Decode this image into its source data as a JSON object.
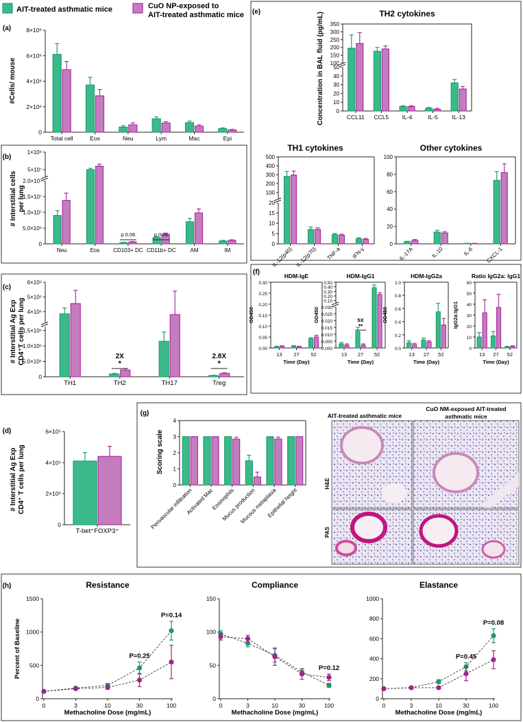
{
  "colors": {
    "green": "#3cb98a",
    "pink": "#c47cbf",
    "green_dark": "#1f9e6c",
    "pink_dark": "#a8319f",
    "resp_green": "#1a9a6a",
    "resp_pink": "#a0238f"
  },
  "legend": {
    "green_label": "AIT-treated asthmatic mice",
    "pink_label_line1": "CuO NP-exposed to",
    "pink_label_line2": "AIT-treated asthmatic mice"
  },
  "chart_data": [
    {
      "id": "a",
      "type": "bar",
      "panel_label": "(a)",
      "ylabel": "#Cells/ mouse",
      "yticks": [
        "0",
        "2×10⁶",
        "4×10⁶",
        "6×10⁶",
        "8×10⁶"
      ],
      "ylim": [
        0,
        8000000
      ],
      "categories": [
        "Total cell",
        "Eos",
        "Neu",
        "Lym",
        "Mac",
        "Epi"
      ],
      "series": [
        {
          "name": "AIT-treated asthmatic mice",
          "values": [
            6100000,
            3700000,
            400000,
            1050000,
            750000,
            280000
          ],
          "errors": [
            850000,
            600000,
            100000,
            150000,
            120000,
            60000
          ]
        },
        {
          "name": "CuO NP-exposed to AIT-treated asthmatic mice",
          "values": [
            4900000,
            2850000,
            580000,
            720000,
            480000,
            170000
          ],
          "errors": [
            650000,
            500000,
            150000,
            110000,
            100000,
            50000
          ]
        }
      ]
    },
    {
      "id": "b",
      "type": "bar",
      "panel_label": "(b)",
      "ylabel_line1": "# Interstitial cells",
      "ylabel_line2": "per lung",
      "yticks_lower": [
        "0",
        "5.0×10⁶",
        "1.0×10⁷",
        "1.5×10⁷",
        "2.0×10⁷"
      ],
      "yticks_upper": [
        "5×10⁷",
        "1×10⁸"
      ],
      "categories": [
        "Neu",
        "Eos",
        "CD103+ DC",
        "CD11b+ DC",
        "AM",
        "IM"
      ],
      "series": [
        {
          "name": "AIT-treated asthmatic mice",
          "values": [
            9000000,
            50000000,
            400000,
            2000000,
            7000000,
            900000
          ],
          "errors": [
            1500000,
            4000000,
            100000,
            300000,
            1100000,
            200000
          ]
        },
        {
          "name": "CuO NP-exposed to AIT-treated asthmatic mice",
          "values": [
            13800000,
            60000000,
            600000,
            3000000,
            9800000,
            1100000
          ],
          "errors": [
            2300000,
            6000000,
            150000,
            400000,
            1300000,
            200000
          ]
        }
      ],
      "annotations": [
        {
          "category": "CD103+ DC",
          "text": "p 0.06"
        },
        {
          "category": "CD11b+ DC",
          "text": "p 0.06"
        }
      ]
    },
    {
      "id": "c",
      "type": "bar",
      "panel_label": "(c)",
      "ylabel_line1": "# Interstitial  Ag Exp",
      "ylabel_line2": "CD4⁺T cells per lung",
      "yticks_lower": [
        "0",
        "5.0×10⁵",
        "1.0×10⁶",
        "1.5×10⁶"
      ],
      "yticks_upper": [
        "4×10⁶",
        "5×10⁶",
        "6×10⁶"
      ],
      "categories": [
        "TH1",
        "TH2",
        "TH17",
        "Treg"
      ],
      "series": [
        {
          "name": "AIT-treated asthmatic mice",
          "values": [
            3850000,
            90000,
            1150000,
            40000
          ],
          "errors": [
            400000,
            20000,
            300000,
            10000
          ]
        },
        {
          "name": "CuO NP-exposed to AIT-treated asthmatic mice",
          "values": [
            4550000,
            220000,
            3800000,
            110000
          ],
          "errors": [
            900000,
            50000,
            1600000,
            20000
          ]
        }
      ],
      "annotations": [
        {
          "category": "TH2",
          "fold": "2X",
          "star": "*"
        },
        {
          "category": "Treg",
          "fold": "2.8X",
          "star": "*"
        }
      ]
    },
    {
      "id": "d",
      "type": "bar",
      "panel_label": "(d)",
      "ylabel_line1": "# Interstitial Ag Exp",
      "ylabel_line2": "CD4⁺ T cells per lung",
      "yticks": [
        "0",
        "2×10⁵",
        "4×10⁵",
        "6×10⁵"
      ],
      "ylim": [
        0,
        600000
      ],
      "categories": [
        "T-bet⁺FOXP3⁺"
      ],
      "series": [
        {
          "name": "AIT-treated asthmatic mice",
          "values": [
            410000
          ],
          "errors": [
            55000
          ]
        },
        {
          "name": "CuO NP-exposed to AIT-treated asthmatic mice",
          "values": [
            440000
          ],
          "errors": [
            65000
          ]
        }
      ]
    },
    {
      "id": "e1",
      "type": "bar",
      "panel_label": "(e)",
      "title": "TH2 cytokines",
      "ylabel": "Concentration in BAL fluid (pg/mL)",
      "yticks_lower": [
        "0",
        "10",
        "20",
        "30",
        "40",
        "50"
      ],
      "yticks_upper": [
        "100",
        "150",
        "200",
        "250",
        "300",
        "350"
      ],
      "categories": [
        "CCL11",
        "CCL5",
        "IL-4",
        "IL-5",
        "IL-13"
      ],
      "series": [
        {
          "name": "AIT-treated asthmatic mice",
          "values": [
            195,
            175,
            5,
            3,
            32
          ],
          "errors": [
            85,
            25,
            1,
            1,
            4
          ]
        },
        {
          "name": "CuO NP-exposed to AIT-treated asthmatic mice",
          "values": [
            225,
            190,
            5,
            2,
            25
          ],
          "errors": [
            70,
            20,
            1,
            1,
            3
          ]
        }
      ]
    },
    {
      "id": "e2",
      "type": "bar",
      "title": "TH1 cytokines",
      "yticks_lower": [
        "0",
        "5",
        "10",
        "15",
        "20"
      ],
      "yticks_upper": [
        "100",
        "200",
        "300",
        "400",
        "500"
      ],
      "categories": [
        "IL-12(p40)",
        "IL-12(p70)",
        "TNF-a",
        "IFN-γ"
      ],
      "series": [
        {
          "name": "AIT-treated asthmatic mice",
          "values": [
            280,
            7,
            4.5,
            2.5
          ],
          "errors": [
            55,
            1.2,
            0.6,
            0.5
          ]
        },
        {
          "name": "CuO NP-exposed to AIT-treated asthmatic mice",
          "values": [
            295,
            7,
            4.2,
            2.2
          ],
          "errors": [
            45,
            0.8,
            0.5,
            0.4
          ]
        }
      ]
    },
    {
      "id": "e3",
      "type": "bar",
      "title": "Other cytokines",
      "yticks": [
        "0",
        "20",
        "40",
        "60",
        "80",
        "100"
      ],
      "ylim": [
        0,
        100
      ],
      "categories": [
        "IL-17A",
        "IL-10",
        "IL-6",
        "CXCL-1"
      ],
      "series": [
        {
          "name": "AIT-treated asthmatic mice",
          "values": [
            2.5,
            13.5,
            0.5,
            73
          ],
          "errors": [
            0.5,
            2,
            0.2,
            10
          ]
        },
        {
          "name": "CuO NP-exposed to AIT-treated asthmatic mice",
          "values": [
            4,
            12.5,
            0.4,
            82
          ],
          "errors": [
            1,
            1.5,
            0.2,
            10
          ]
        }
      ]
    },
    {
      "id": "f1",
      "type": "bar",
      "panel_label": "(f)",
      "title": "HDM-IgE",
      "ylabel": "OD450",
      "xlabel": "Time (Day)",
      "yticks": [
        "0.00",
        "0.05",
        "0.10",
        "0.15",
        "0.20",
        "0.25",
        "0.30"
      ],
      "ylim": [
        0,
        0.3
      ],
      "categories": [
        "13",
        "27",
        "52"
      ],
      "series": [
        {
          "name": "AIT-treated asthmatic mice",
          "values": [
            0.006,
            0.008,
            0.042
          ],
          "errors": [
            0.002,
            0.003,
            0.005
          ]
        },
        {
          "name": "CuO NP-exposed to AIT-treated asthmatic mice",
          "values": [
            0.008,
            0.006,
            0.05
          ],
          "errors": [
            0.002,
            0.002,
            0.008
          ]
        }
      ]
    },
    {
      "id": "f2",
      "type": "bar",
      "title": "HDM-IgG1",
      "ylabel": "OD450",
      "xlabel": "Time (Day)",
      "yticks_lower": [
        "0.000",
        "0.005",
        "0.010",
        "0.015",
        "0.020",
        "0.025",
        "0.030"
      ],
      "yticks_upper": [
        "0.10",
        "0.20",
        "0.30",
        "0.40",
        "0.50"
      ],
      "categories": [
        "13",
        "27",
        "52"
      ],
      "series": [
        {
          "name": "AIT-treated asthmatic mice",
          "values": [
            0.003,
            0.012,
            0.38
          ],
          "errors": [
            0.001,
            0.003,
            0.06
          ]
        },
        {
          "name": "CuO NP-exposed to AIT-treated asthmatic mice",
          "values": [
            0.002,
            0.002,
            0.23
          ],
          "errors": [
            0.001,
            0.001,
            0.04
          ]
        }
      ],
      "annotations": [
        {
          "category": "27",
          "fold": "5X",
          "star": "**"
        }
      ]
    },
    {
      "id": "f3",
      "type": "bar",
      "title": "HDM-IgG2a",
      "ylabel": "OD450",
      "xlabel": "Time (Day)",
      "yticks": [
        "0.0",
        "0.2",
        "0.4",
        "0.6",
        "0.8",
        "1.0"
      ],
      "ylim": [
        0,
        1.0
      ],
      "categories": [
        "13",
        "27",
        "52"
      ],
      "series": [
        {
          "name": "AIT-treated asthmatic mice",
          "values": [
            0.08,
            0.12,
            0.55
          ],
          "errors": [
            0.03,
            0.03,
            0.13
          ]
        },
        {
          "name": "CuO NP-exposed to AIT-treated asthmatic mice",
          "values": [
            0.05,
            0.09,
            0.35
          ],
          "errors": [
            0.02,
            0.02,
            0.1
          ]
        }
      ]
    },
    {
      "id": "f4",
      "type": "bar",
      "title": "Ratio IgG2a: IgG1",
      "ylabel": "IgG2a:IgG1",
      "xlabel": "Time (Day)",
      "yticks": [
        "0",
        "10",
        "20",
        "30",
        "40",
        "50",
        "60"
      ],
      "ylim": [
        0,
        60
      ],
      "categories": [
        "13",
        "27",
        "52"
      ],
      "series": [
        {
          "name": "AIT-treated asthmatic mice",
          "values": [
            10,
            11,
            1
          ],
          "errors": [
            4,
            4,
            0.5
          ]
        },
        {
          "name": "CuO NP-exposed to AIT-treated asthmatic mice",
          "values": [
            32,
            37,
            1.5
          ],
          "errors": [
            12,
            12,
            0.5
          ]
        }
      ]
    },
    {
      "id": "g",
      "type": "bar",
      "panel_label": "(g)",
      "ylabel": "Scoring scale",
      "yticks": [
        "0",
        "1",
        "2",
        "3",
        "4"
      ],
      "ylim": [
        0,
        4
      ],
      "categories": [
        "Perivascular infiltration",
        "Activated Mac",
        "Eosinophils",
        "Mucus production",
        "Mucous metaplasia",
        "Epithelial height"
      ],
      "series": [
        {
          "name": "AIT-treated asthmatic mice",
          "values": [
            3,
            3,
            3,
            1.5,
            3,
            3
          ],
          "errors": [
            0,
            0,
            0,
            0.35,
            0,
            0
          ]
        },
        {
          "name": "CuO NP-exposed to AIT-treated asthmatic mice",
          "values": [
            3,
            3,
            2.85,
            0.5,
            2.85,
            3
          ],
          "errors": [
            0,
            0,
            0.12,
            0.3,
            0.12,
            0
          ]
        }
      ]
    },
    {
      "id": "h1",
      "type": "line",
      "panel_label": "(h)",
      "title": "Resistance",
      "ylabel": "Percent of Baseline",
      "xlabel": "Methacholine Dose (mg/mL)",
      "x": [
        "0",
        "3",
        "10",
        "30",
        "100"
      ],
      "yticks": [
        "0",
        "500",
        "1000",
        "1500"
      ],
      "ylim": [
        0,
        1500
      ],
      "series": [
        {
          "name": "AIT-treated asthmatic mice",
          "values": [
            110,
            160,
            200,
            460,
            1020
          ],
          "errors": [
            15,
            20,
            30,
            90,
            140
          ]
        },
        {
          "name": "CuO NP-exposed to AIT-treated asthmatic mice",
          "values": [
            110,
            150,
            170,
            280,
            550
          ],
          "errors": [
            15,
            15,
            30,
            100,
            250
          ]
        }
      ],
      "annotations": [
        {
          "x": "30",
          "text": "P=0.25"
        },
        {
          "x": "100",
          "text": "P=0.14"
        }
      ]
    },
    {
      "id": "h2",
      "type": "line",
      "title": "Compliance",
      "xlabel": "Methacholine Dose (mg/mL)",
      "x": [
        "0",
        "3",
        "10",
        "30",
        "100"
      ],
      "yticks": [
        "0",
        "50",
        "100",
        "150"
      ],
      "ylim": [
        0,
        150
      ],
      "series": [
        {
          "name": "AIT-treated asthmatic mice",
          "values": [
            97,
            83,
            65,
            40,
            20
          ],
          "errors": [
            5,
            5,
            10,
            5,
            3
          ]
        },
        {
          "name": "CuO NP-exposed to AIT-treated asthmatic mice",
          "values": [
            93,
            90,
            63,
            37,
            32
          ],
          "errors": [
            5,
            5,
            13,
            8,
            5
          ]
        }
      ],
      "annotations": [
        {
          "x": "100",
          "text": "P=0.12"
        }
      ]
    },
    {
      "id": "h3",
      "type": "line",
      "title": "Elastance",
      "xlabel": "Methacholine Dose (mg/mL)",
      "x": [
        "0",
        "3",
        "10",
        "30",
        "100"
      ],
      "yticks": [
        "0",
        "200",
        "400",
        "600",
        "800",
        "1000"
      ],
      "ylim": [
        0,
        1000
      ],
      "series": [
        {
          "name": "AIT-treated asthmatic mice",
          "values": [
            100,
            110,
            170,
            320,
            630
          ],
          "errors": [
            10,
            10,
            20,
            40,
            70
          ]
        },
        {
          "name": "CuO NP-exposed to AIT-treated asthmatic mice",
          "values": [
            100,
            110,
            110,
            250,
            390
          ],
          "errors": [
            10,
            10,
            15,
            70,
            90
          ]
        }
      ],
      "annotations": [
        {
          "x": "30",
          "text": "P=0.45"
        },
        {
          "x": "100",
          "text": "P=0.08"
        }
      ]
    }
  ],
  "histology": {
    "col1": "AIT-treated asthmatic mice",
    "col2_line1": "CuO NM-exposed AIT-treated",
    "col2_line2": "asthmatic mice",
    "row1": "H&E",
    "row2": "PAS"
  }
}
